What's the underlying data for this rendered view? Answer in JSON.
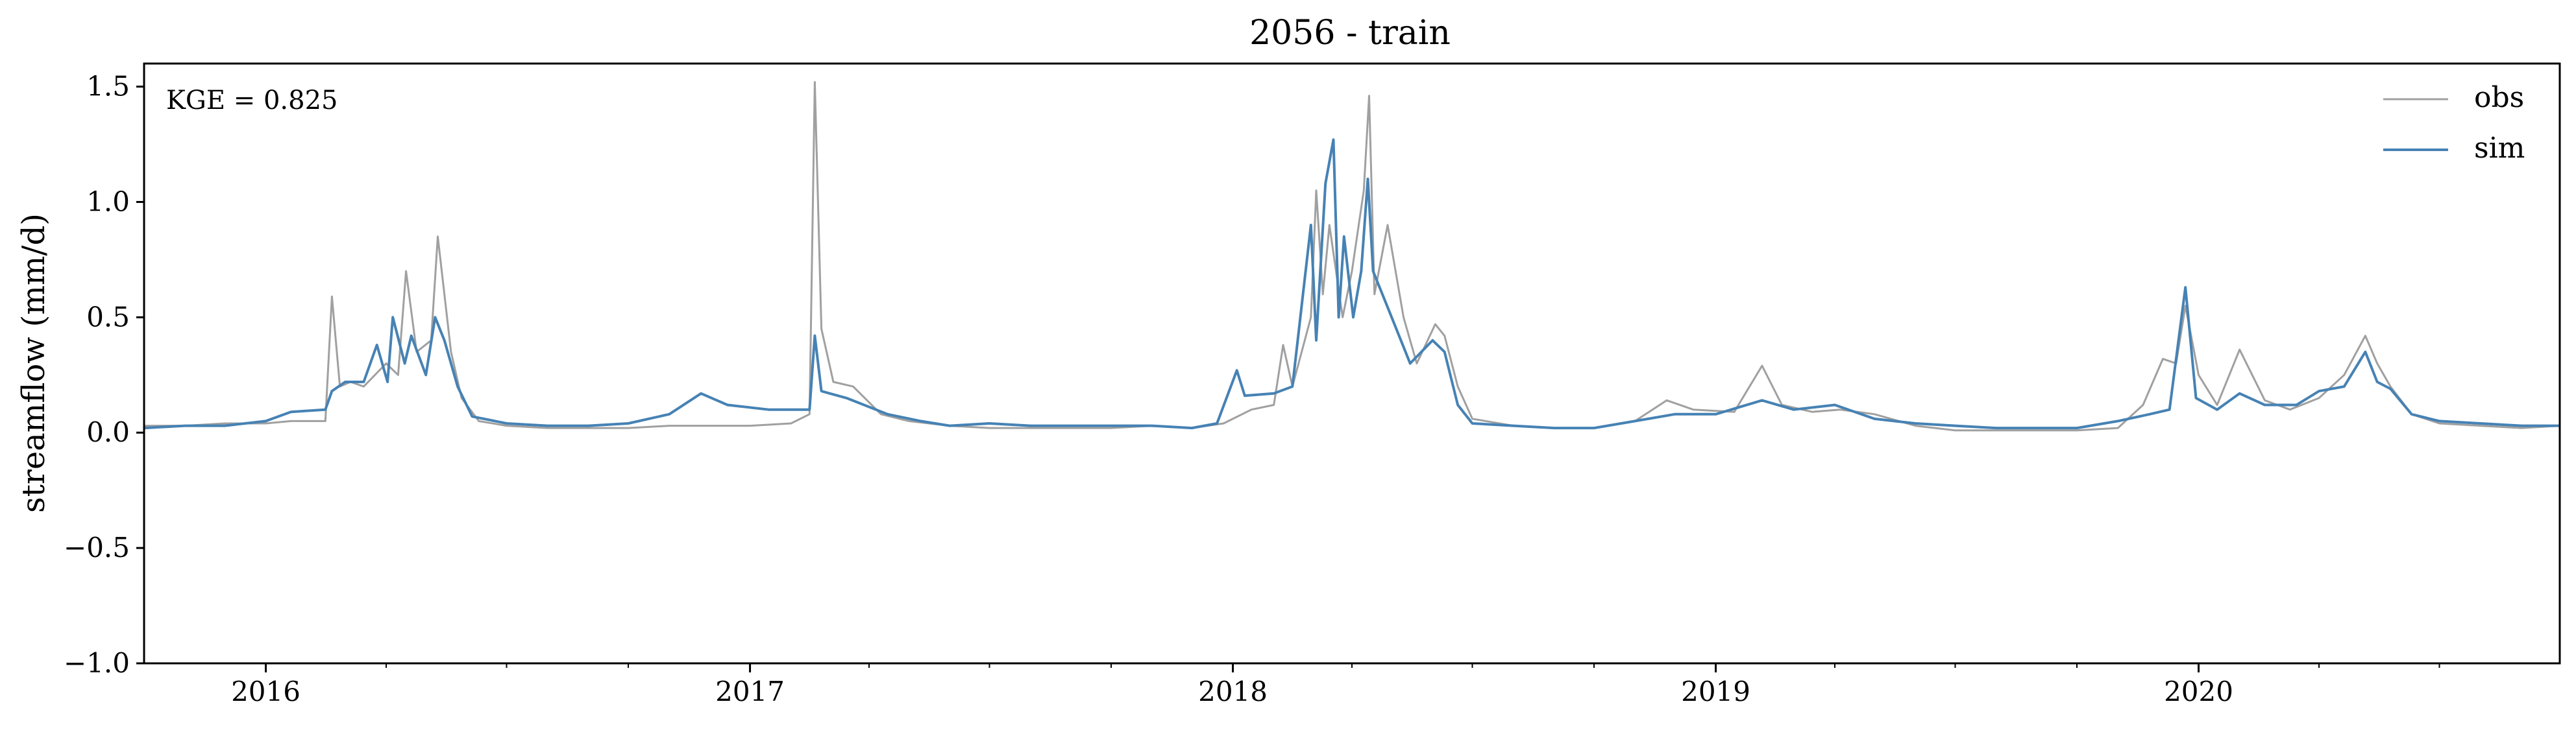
{
  "chart_data": {
    "type": "line",
    "title": "2056 - train",
    "xlabel": "",
    "ylabel": "streamflow (mm/d)",
    "annotation": "KGE = 0.825",
    "ylim": [
      -1.0,
      1.6
    ],
    "xlim": [
      "2015-10-01",
      "2020-09-30"
    ],
    "grid": false,
    "legend_position": "top-right",
    "y_ticks": [
      {
        "value": -1.0,
        "label": "−1.0"
      },
      {
        "value": -0.5,
        "label": "−0.5"
      },
      {
        "value": 0.0,
        "label": "0.0"
      },
      {
        "value": 0.5,
        "label": "0.5"
      },
      {
        "value": 1.0,
        "label": "1.0"
      },
      {
        "value": 1.5,
        "label": "1.5"
      }
    ],
    "x_ticks": [
      {
        "value": "2016-01-01",
        "label": "2016"
      },
      {
        "value": "2017-01-01",
        "label": "2017"
      },
      {
        "value": "2018-01-01",
        "label": "2018"
      },
      {
        "value": "2019-01-01",
        "label": "2019"
      },
      {
        "value": "2020-01-01",
        "label": "2020"
      }
    ],
    "series": [
      {
        "name": "obs",
        "color": "#a0a0a0",
        "points": [
          [
            "2015-10-01",
            0.03
          ],
          [
            "2015-11-01",
            0.03
          ],
          [
            "2015-12-01",
            0.04
          ],
          [
            "2016-01-01",
            0.04
          ],
          [
            "2016-01-20",
            0.05
          ],
          [
            "2016-02-15",
            0.05
          ],
          [
            "2016-02-20",
            0.59
          ],
          [
            "2016-02-26",
            0.2
          ],
          [
            "2016-03-05",
            0.22
          ],
          [
            "2016-03-15",
            0.2
          ],
          [
            "2016-04-01",
            0.3
          ],
          [
            "2016-04-10",
            0.25
          ],
          [
            "2016-04-16",
            0.7
          ],
          [
            "2016-04-24",
            0.35
          ],
          [
            "2016-05-05",
            0.4
          ],
          [
            "2016-05-10",
            0.85
          ],
          [
            "2016-05-20",
            0.35
          ],
          [
            "2016-05-28",
            0.15
          ],
          [
            "2016-06-10",
            0.05
          ],
          [
            "2016-07-01",
            0.03
          ],
          [
            "2016-08-01",
            0.02
          ],
          [
            "2016-09-01",
            0.02
          ],
          [
            "2016-10-01",
            0.02
          ],
          [
            "2016-11-01",
            0.03
          ],
          [
            "2016-12-01",
            0.03
          ],
          [
            "2017-01-01",
            0.03
          ],
          [
            "2017-02-01",
            0.04
          ],
          [
            "2017-02-15",
            0.08
          ],
          [
            "2017-02-19",
            1.52
          ],
          [
            "2017-02-24",
            0.45
          ],
          [
            "2017-03-05",
            0.22
          ],
          [
            "2017-03-20",
            0.2
          ],
          [
            "2017-04-10",
            0.08
          ],
          [
            "2017-05-01",
            0.05
          ],
          [
            "2017-06-01",
            0.03
          ],
          [
            "2017-07-01",
            0.02
          ],
          [
            "2017-08-01",
            0.02
          ],
          [
            "2017-09-01",
            0.02
          ],
          [
            "2017-10-01",
            0.02
          ],
          [
            "2017-11-01",
            0.03
          ],
          [
            "2017-12-01",
            0.02
          ],
          [
            "2017-12-25",
            0.04
          ],
          [
            "2018-01-15",
            0.1
          ],
          [
            "2018-02-01",
            0.12
          ],
          [
            "2018-02-08",
            0.38
          ],
          [
            "2018-02-15",
            0.2
          ],
          [
            "2018-03-01",
            0.5
          ],
          [
            "2018-03-05",
            1.05
          ],
          [
            "2018-03-10",
            0.6
          ],
          [
            "2018-03-15",
            0.9
          ],
          [
            "2018-03-25",
            0.5
          ],
          [
            "2018-04-01",
            0.7
          ],
          [
            "2018-04-10",
            1.05
          ],
          [
            "2018-04-14",
            1.46
          ],
          [
            "2018-04-18",
            0.6
          ],
          [
            "2018-04-28",
            0.9
          ],
          [
            "2018-05-10",
            0.5
          ],
          [
            "2018-05-20",
            0.3
          ],
          [
            "2018-06-03",
            0.47
          ],
          [
            "2018-06-10",
            0.42
          ],
          [
            "2018-06-20",
            0.2
          ],
          [
            "2018-07-01",
            0.06
          ],
          [
            "2018-08-01",
            0.03
          ],
          [
            "2018-09-01",
            0.02
          ],
          [
            "2018-10-01",
            0.02
          ],
          [
            "2018-11-01",
            0.05
          ],
          [
            "2018-11-25",
            0.14
          ],
          [
            "2018-12-15",
            0.1
          ],
          [
            "2019-01-15",
            0.09
          ],
          [
            "2019-02-05",
            0.29
          ],
          [
            "2019-02-20",
            0.12
          ],
          [
            "2019-03-15",
            0.09
          ],
          [
            "2019-04-05",
            0.1
          ],
          [
            "2019-05-01",
            0.08
          ],
          [
            "2019-06-01",
            0.03
          ],
          [
            "2019-07-01",
            0.01
          ],
          [
            "2019-08-01",
            0.01
          ],
          [
            "2019-09-01",
            0.01
          ],
          [
            "2019-10-01",
            0.01
          ],
          [
            "2019-11-01",
            0.02
          ],
          [
            "2019-11-20",
            0.12
          ],
          [
            "2019-12-05",
            0.32
          ],
          [
            "2019-12-15",
            0.3
          ],
          [
            "2019-12-22",
            0.55
          ],
          [
            "2020-01-01",
            0.25
          ],
          [
            "2020-01-15",
            0.12
          ],
          [
            "2020-02-01",
            0.36
          ],
          [
            "2020-02-20",
            0.14
          ],
          [
            "2020-03-10",
            0.1
          ],
          [
            "2020-04-01",
            0.15
          ],
          [
            "2020-04-20",
            0.25
          ],
          [
            "2020-05-06",
            0.42
          ],
          [
            "2020-05-15",
            0.3
          ],
          [
            "2020-05-25",
            0.2
          ],
          [
            "2020-06-10",
            0.08
          ],
          [
            "2020-07-01",
            0.04
          ],
          [
            "2020-08-01",
            0.03
          ],
          [
            "2020-09-01",
            0.02
          ],
          [
            "2020-09-30",
            0.03
          ]
        ]
      },
      {
        "name": "sim",
        "color": "#4682b4",
        "points": [
          [
            "2015-10-01",
            0.02
          ],
          [
            "2015-11-01",
            0.03
          ],
          [
            "2015-12-01",
            0.03
          ],
          [
            "2016-01-01",
            0.05
          ],
          [
            "2016-01-20",
            0.09
          ],
          [
            "2016-02-15",
            0.1
          ],
          [
            "2016-02-20",
            0.18
          ],
          [
            "2016-03-01",
            0.22
          ],
          [
            "2016-03-15",
            0.22
          ],
          [
            "2016-03-25",
            0.38
          ],
          [
            "2016-04-02",
            0.22
          ],
          [
            "2016-04-06",
            0.5
          ],
          [
            "2016-04-15",
            0.3
          ],
          [
            "2016-04-20",
            0.42
          ],
          [
            "2016-05-01",
            0.25
          ],
          [
            "2016-05-08",
            0.5
          ],
          [
            "2016-05-15",
            0.4
          ],
          [
            "2016-05-25",
            0.2
          ],
          [
            "2016-06-05",
            0.07
          ],
          [
            "2016-07-01",
            0.04
          ],
          [
            "2016-08-01",
            0.03
          ],
          [
            "2016-09-01",
            0.03
          ],
          [
            "2016-10-01",
            0.04
          ],
          [
            "2016-11-01",
            0.08
          ],
          [
            "2016-11-25",
            0.17
          ],
          [
            "2016-12-15",
            0.12
          ],
          [
            "2017-01-15",
            0.1
          ],
          [
            "2017-02-15",
            0.1
          ],
          [
            "2017-02-19",
            0.42
          ],
          [
            "2017-02-24",
            0.18
          ],
          [
            "2017-03-15",
            0.15
          ],
          [
            "2017-04-15",
            0.08
          ],
          [
            "2017-05-10",
            0.05
          ],
          [
            "2017-06-01",
            0.03
          ],
          [
            "2017-07-01",
            0.04
          ],
          [
            "2017-08-01",
            0.03
          ],
          [
            "2017-09-01",
            0.03
          ],
          [
            "2017-10-01",
            0.03
          ],
          [
            "2017-11-01",
            0.03
          ],
          [
            "2017-12-01",
            0.02
          ],
          [
            "2017-12-20",
            0.04
          ],
          [
            "2018-01-04",
            0.27
          ],
          [
            "2018-01-10",
            0.16
          ],
          [
            "2018-02-01",
            0.17
          ],
          [
            "2018-02-15",
            0.2
          ],
          [
            "2018-03-01",
            0.9
          ],
          [
            "2018-03-05",
            0.4
          ],
          [
            "2018-03-12",
            1.08
          ],
          [
            "2018-03-18",
            1.27
          ],
          [
            "2018-03-22",
            0.5
          ],
          [
            "2018-03-26",
            0.85
          ],
          [
            "2018-04-02",
            0.5
          ],
          [
            "2018-04-08",
            0.7
          ],
          [
            "2018-04-13",
            1.1
          ],
          [
            "2018-04-17",
            0.7
          ],
          [
            "2018-05-01",
            0.5
          ],
          [
            "2018-05-15",
            0.3
          ],
          [
            "2018-06-01",
            0.4
          ],
          [
            "2018-06-10",
            0.35
          ],
          [
            "2018-06-20",
            0.12
          ],
          [
            "2018-07-01",
            0.04
          ],
          [
            "2018-08-01",
            0.03
          ],
          [
            "2018-09-01",
            0.02
          ],
          [
            "2018-10-01",
            0.02
          ],
          [
            "2018-11-01",
            0.05
          ],
          [
            "2018-12-01",
            0.08
          ],
          [
            "2019-01-01",
            0.08
          ],
          [
            "2019-02-05",
            0.14
          ],
          [
            "2019-03-01",
            0.1
          ],
          [
            "2019-04-01",
            0.12
          ],
          [
            "2019-05-01",
            0.06
          ],
          [
            "2019-06-01",
            0.04
          ],
          [
            "2019-07-01",
            0.03
          ],
          [
            "2019-08-01",
            0.02
          ],
          [
            "2019-09-01",
            0.02
          ],
          [
            "2019-10-01",
            0.02
          ],
          [
            "2019-11-01",
            0.05
          ],
          [
            "2019-11-25",
            0.08
          ],
          [
            "2019-12-10",
            0.1
          ],
          [
            "2019-12-22",
            0.63
          ],
          [
            "2019-12-30",
            0.15
          ],
          [
            "2020-01-15",
            0.1
          ],
          [
            "2020-02-01",
            0.17
          ],
          [
            "2020-02-20",
            0.12
          ],
          [
            "2020-03-15",
            0.12
          ],
          [
            "2020-04-01",
            0.18
          ],
          [
            "2020-04-20",
            0.2
          ],
          [
            "2020-05-06",
            0.35
          ],
          [
            "2020-05-15",
            0.22
          ],
          [
            "2020-05-25",
            0.19
          ],
          [
            "2020-06-10",
            0.08
          ],
          [
            "2020-07-01",
            0.05
          ],
          [
            "2020-08-01",
            0.04
          ],
          [
            "2020-09-01",
            0.03
          ],
          [
            "2020-09-30",
            0.03
          ]
        ]
      }
    ]
  }
}
